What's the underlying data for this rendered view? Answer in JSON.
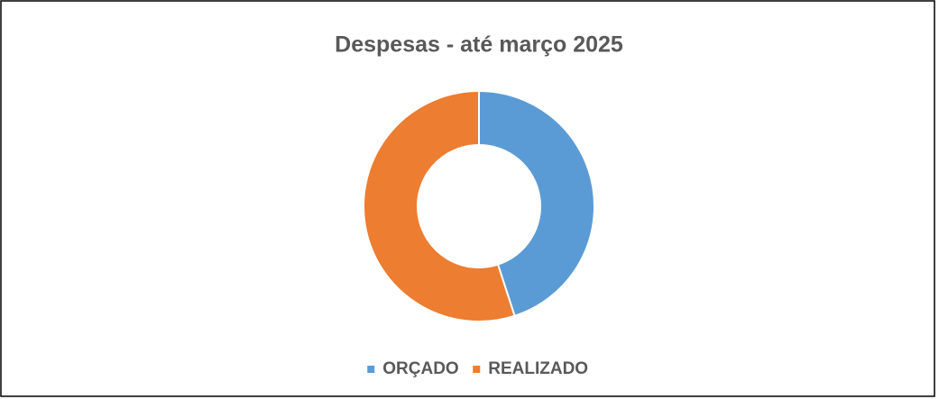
{
  "chart_data": {
    "type": "donut",
    "title": "Despesas - até março 2025",
    "categories": [
      "ORÇADO",
      "REALIZADO"
    ],
    "values": [
      45,
      55
    ],
    "colors": [
      "#5b9bd5",
      "#ed7d31"
    ],
    "legend": "bottom"
  }
}
